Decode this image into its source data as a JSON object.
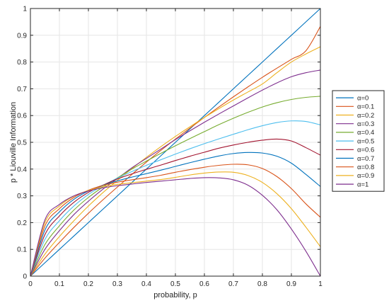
{
  "chart_data": {
    "type": "line",
    "title": "",
    "xlabel": "probability, p",
    "ylabel": "p * Liouville Information",
    "xlim": [
      0,
      1
    ],
    "ylim": [
      0,
      1
    ],
    "grid": true,
    "legend_position": "right",
    "x_ticks": [
      0,
      0.1,
      0.2,
      0.3,
      0.4,
      0.5,
      0.6,
      0.7,
      0.8,
      0.9,
      1
    ],
    "x_tick_labels": [
      "0",
      "0.1",
      "0.2",
      "0.3",
      "0.4",
      "0.5",
      "0.6",
      "0.7",
      "0.8",
      "0.9",
      "1"
    ],
    "y_ticks": [
      0,
      0.1,
      0.2,
      0.3,
      0.4,
      0.5,
      0.6,
      0.7,
      0.8,
      0.9,
      1
    ],
    "y_tick_labels": [
      "0",
      "0.1",
      "0.2",
      "0.3",
      "0.4",
      "0.5",
      "0.6",
      "0.7",
      "0.8",
      "0.9",
      "1"
    ],
    "x": [
      0,
      0.05,
      0.1,
      0.15,
      0.2,
      0.25,
      0.3,
      0.35,
      0.4,
      0.45,
      0.5,
      0.55,
      0.6,
      0.65,
      0.7,
      0.75,
      0.8,
      0.85,
      0.9,
      0.95,
      1
    ],
    "series": [
      {
        "name": "α=0",
        "color": "#0072BD",
        "values": [
          0,
          0.05,
          0.1,
          0.15,
          0.2,
          0.25,
          0.3,
          0.35,
          0.4,
          0.45,
          0.5,
          0.55,
          0.6,
          0.65,
          0.7,
          0.75,
          0.8,
          0.85,
          0.9,
          0.95,
          1
        ]
      },
      {
        "name": "α=0.1",
        "color": "#D95319",
        "values": [
          0,
          0.067,
          0.126,
          0.182,
          0.235,
          0.285,
          0.333,
          0.38,
          0.426,
          0.47,
          0.512,
          0.553,
          0.593,
          0.632,
          0.67,
          0.707,
          0.743,
          0.777,
          0.81,
          0.842,
          0.933
        ]
      },
      {
        "name": "α=0.2",
        "color": "#EDB120",
        "values": [
          0,
          0.082,
          0.148,
          0.207,
          0.262,
          0.312,
          0.358,
          0.402,
          0.444,
          0.484,
          0.522,
          0.558,
          0.593,
          0.626,
          0.658,
          0.688,
          0.718,
          0.76,
          0.8,
          0.83,
          0.857
        ]
      },
      {
        "name": "α=0.3",
        "color": "#7E2F8E",
        "values": [
          0,
          0.1,
          0.17,
          0.23,
          0.28,
          0.325,
          0.365,
          0.405,
          0.44,
          0.475,
          0.51,
          0.543,
          0.575,
          0.606,
          0.636,
          0.666,
          0.695,
          0.722,
          0.745,
          0.76,
          0.77
        ]
      },
      {
        "name": "α=0.4",
        "color": "#77AC30",
        "values": [
          0,
          0.118,
          0.188,
          0.247,
          0.294,
          0.333,
          0.367,
          0.4,
          0.43,
          0.459,
          0.487,
          0.514,
          0.54,
          0.566,
          0.59,
          0.612,
          0.632,
          0.648,
          0.66,
          0.668,
          0.672
        ]
      },
      {
        "name": "α=0.5",
        "color": "#4DBEEE",
        "values": [
          0,
          0.137,
          0.207,
          0.262,
          0.305,
          0.338,
          0.366,
          0.391,
          0.414,
          0.435,
          0.456,
          0.476,
          0.495,
          0.513,
          0.53,
          0.547,
          0.562,
          0.574,
          0.58,
          0.578,
          0.565
        ]
      },
      {
        "name": "α=0.6",
        "color": "#A2142F",
        "values": [
          0,
          0.155,
          0.225,
          0.276,
          0.313,
          0.34,
          0.363,
          0.382,
          0.399,
          0.415,
          0.432,
          0.448,
          0.463,
          0.478,
          0.49,
          0.5,
          0.508,
          0.512,
          0.505,
          0.48,
          0.452
        ]
      },
      {
        "name": "α=0.7",
        "color": "#0072BD",
        "values": [
          0,
          0.172,
          0.24,
          0.287,
          0.318,
          0.34,
          0.356,
          0.37,
          0.383,
          0.396,
          0.41,
          0.424,
          0.437,
          0.449,
          0.458,
          0.462,
          0.46,
          0.448,
          0.422,
          0.38,
          0.335
        ]
      },
      {
        "name": "α=0.8",
        "color": "#D95319",
        "values": [
          0,
          0.187,
          0.252,
          0.294,
          0.321,
          0.339,
          0.351,
          0.36,
          0.368,
          0.377,
          0.388,
          0.398,
          0.407,
          0.414,
          0.418,
          0.416,
          0.402,
          0.372,
          0.327,
          0.27,
          0.22
        ]
      },
      {
        "name": "α=0.9",
        "color": "#EDB120",
        "values": [
          0,
          0.2,
          0.262,
          0.299,
          0.32,
          0.334,
          0.343,
          0.349,
          0.355,
          0.361,
          0.369,
          0.378,
          0.385,
          0.389,
          0.388,
          0.376,
          0.35,
          0.308,
          0.252,
          0.183,
          0.11
        ]
      },
      {
        "name": "α=1",
        "color": "#7E2F8E",
        "values": [
          0,
          0.21,
          0.268,
          0.3,
          0.318,
          0.33,
          0.338,
          0.344,
          0.35,
          0.355,
          0.36,
          0.365,
          0.368,
          0.367,
          0.36,
          0.34,
          0.302,
          0.248,
          0.176,
          0.093,
          0
        ]
      }
    ]
  }
}
